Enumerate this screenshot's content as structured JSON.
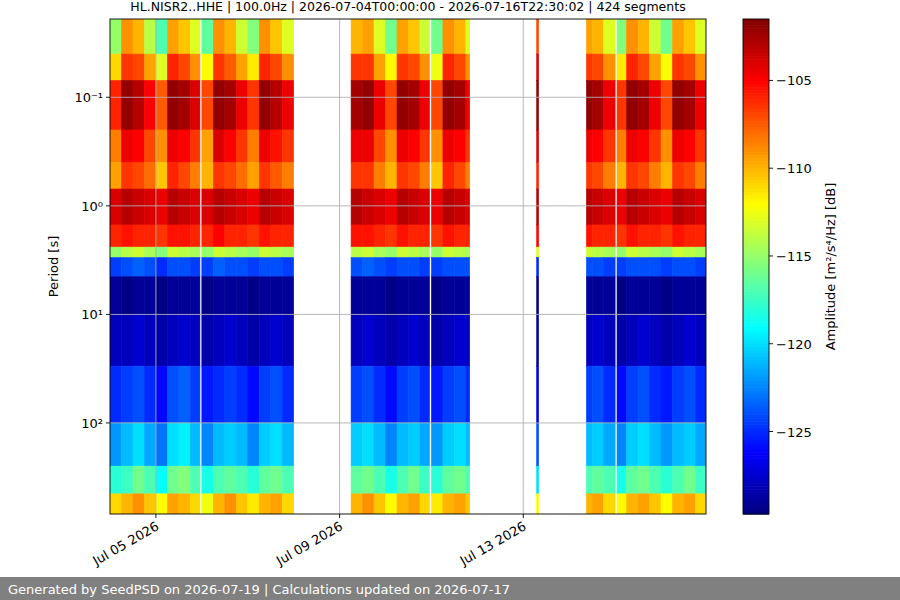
{
  "chart_data": {
    "type": "heatmap",
    "title": "HL.NISR2..HHE | 100.0Hz | 2026-07-04T00:00:00 - 2026-07-16T22:30:02 | 424 segments",
    "footer": "Generated by SeedPSD on 2026-07-19 | Calculations updated on 2026-07-17",
    "y_label": "Period [s]",
    "log": "y",
    "grid": true,
    "xlim": [
      "2026-07-04T00:00",
      "2026-07-16T23:30"
    ],
    "xticks": [
      {
        "value": "2026-07-05T00:00",
        "label": "Jul 05 2026"
      },
      {
        "value": "2026-07-09T00:00",
        "label": "Jul 09 2026"
      },
      {
        "value": "2026-07-13T00:00",
        "label": "Jul 13 2026"
      }
    ],
    "ylim": [
      690,
      0.019
    ],
    "yticks": [
      {
        "value": 0.1,
        "label": "10⁻¹"
      },
      {
        "value": 1,
        "label": "10⁰"
      },
      {
        "value": 10,
        "label": "10¹"
      },
      {
        "value": 100,
        "label": "10²"
      }
    ],
    "colorbar": {
      "label": "Amplitude [m²/s⁴/Hz] [dB]",
      "range": [
        -129.7,
        -101.5
      ],
      "ticks": [
        {
          "value": -125,
          "label": "−125"
        },
        {
          "value": -120,
          "label": "−120"
        },
        {
          "value": -115,
          "label": "−115"
        },
        {
          "value": -110,
          "label": "−110"
        },
        {
          "value": -105,
          "label": "−105"
        }
      ]
    },
    "x_edges": [
      "2026-07-04T00:00",
      "2026-07-04T06:00",
      "2026-07-04T12:00",
      "2026-07-04T18:00",
      "2026-07-05T00:00",
      "2026-07-05T06:00",
      "2026-07-05T12:00",
      "2026-07-05T18:00",
      "2026-07-05T23:00",
      "2026-07-06T00:00",
      "2026-07-06T06:00",
      "2026-07-06T12:00",
      "2026-07-06T18:00",
      "2026-07-07T00:00",
      "2026-07-07T06:00",
      "2026-07-07T12:00",
      "2026-07-07T18:00",
      "2026-07-08T00:00",
      "2026-07-09T06:00",
      "2026-07-09T12:00",
      "2026-07-09T18:00",
      "2026-07-10T00:00",
      "2026-07-10T06:00",
      "2026-07-10T12:00",
      "2026-07-10T18:00",
      "2026-07-10T23:00",
      "2026-07-11T00:00",
      "2026-07-11T06:00",
      "2026-07-11T12:00",
      "2026-07-11T18:00",
      "2026-07-11T20:00",
      "2026-07-13T07:00",
      "2026-07-13T08:00",
      "2026-07-14T09:00",
      "2026-07-14T12:00",
      "2026-07-14T18:00",
      "2026-07-15T00:00",
      "2026-07-15T01:00",
      "2026-07-15T06:00",
      "2026-07-15T12:00",
      "2026-07-15T18:00",
      "2026-07-16T00:00",
      "2026-07-16T06:00",
      "2026-07-16T12:00",
      "2026-07-16T18:00",
      "2026-07-16T23:30"
    ],
    "y_edges": [
      0.019,
      0.04,
      0.07,
      0.2,
      0.4,
      0.7,
      1.5,
      2.4,
      3.0,
      4.5,
      10,
      30,
      100,
      250,
      450,
      690
    ],
    "values": [
      [
        -115,
        -111,
        -106,
        -108.5,
        -109.5,
        -104,
        -106,
        -115,
        -124.5,
        -129,
        -128,
        -125,
        -122,
        -118,
        -111
      ],
      [
        -109,
        -106.5,
        -102,
        -104.5,
        -106.5,
        -103,
        -105.5,
        -114,
        -124,
        -129.5,
        -128,
        -124.5,
        -121,
        -117.5,
        -110
      ],
      [
        -110,
        -107,
        -103,
        -105,
        -107,
        -103.5,
        -106,
        -113.5,
        -123.5,
        -129,
        -127.5,
        -124,
        -120,
        -116,
        -109
      ],
      [
        -114,
        -109.5,
        -105,
        -107,
        -108,
        -104,
        -106,
        -114.5,
        -124,
        -129,
        -128,
        -125,
        -121.5,
        -117,
        -110.5
      ],
      [
        -117,
        -113,
        -107.5,
        -109,
        -110.5,
        -104.5,
        -106.5,
        -115.5,
        -125,
        -129.5,
        -128.5,
        -126,
        -123,
        -119,
        -112
      ],
      [
        -109.5,
        -106,
        -102,
        -104.5,
        -106,
        -103,
        -105.5,
        -113.5,
        -124,
        -129,
        -128,
        -124,
        -120,
        -116,
        -109.5
      ],
      [
        -110.5,
        -107,
        -102.5,
        -105,
        -107,
        -103.5,
        -105.5,
        -114,
        -124,
        -129,
        -127.5,
        -123.5,
        -119.5,
        -115.5,
        -110
      ],
      [
        -113,
        -109,
        -104,
        -106.5,
        -108.5,
        -104,
        -106,
        -114.5,
        -124.5,
        -129,
        -128,
        -124.5,
        -121,
        -117,
        -111
      ],
      null,
      [
        -116.5,
        -112,
        -107,
        -109.5,
        -110,
        -104,
        -106,
        -115,
        -124.5,
        -129.5,
        -128.5,
        -125.5,
        -122.5,
        -118.5,
        -112.5
      ],
      [
        -109,
        -106.5,
        -102,
        -104,
        -106.5,
        -103,
        -105,
        -113.5,
        -123.5,
        -129,
        -128,
        -125,
        -121,
        -117,
        -110
      ],
      [
        -110,
        -107.5,
        -102.5,
        -105,
        -107,
        -103.5,
        -106,
        -114,
        -124,
        -129,
        -127.5,
        -124.5,
        -120.5,
        -116.5,
        -109
      ],
      [
        -113.5,
        -109.5,
        -104.5,
        -106.5,
        -108,
        -104,
        -106,
        -114.5,
        -124,
        -129,
        -128,
        -125,
        -121,
        -117,
        -110.5
      ],
      [
        -115.5,
        -111.5,
        -106.5,
        -108.5,
        -109.5,
        -104.5,
        -106.5,
        -115,
        -124.5,
        -129.5,
        -128.5,
        -126,
        -122.5,
        -118,
        -111.5
      ],
      [
        -109,
        -106,
        -102,
        -104.5,
        -106.5,
        -103,
        -105.5,
        -113.5,
        -124,
        -129,
        -128,
        -124.5,
        -120.5,
        -116.5,
        -110
      ],
      [
        -110.5,
        -107,
        -103,
        -105.5,
        -107.5,
        -103.5,
        -106,
        -114,
        -124,
        -129,
        -127.5,
        -124,
        -120,
        -116,
        -109.5
      ],
      [
        -113,
        -109,
        -104.5,
        -106.5,
        -108.5,
        -104,
        -106,
        -114.5,
        -124.5,
        -129,
        -128,
        -125,
        -121,
        -117,
        -111
      ],
      null,
      [
        -110,
        -106.5,
        -102.5,
        -104.5,
        -106.5,
        -103,
        -105.5,
        -114,
        -124,
        -129,
        -128,
        -124.5,
        -120.5,
        -116.5,
        -110
      ],
      [
        -109.5,
        -106.5,
        -102,
        -104.5,
        -106.5,
        -103.5,
        -105.5,
        -113.5,
        -123.5,
        -129,
        -127.5,
        -124,
        -120,
        -116,
        -109
      ],
      [
        -113,
        -109.5,
        -104.5,
        -107,
        -108.5,
        -104,
        -106,
        -114.5,
        -124,
        -129,
        -128,
        -125,
        -121,
        -117,
        -110.5
      ],
      [
        -116,
        -112,
        -107,
        -109,
        -110,
        -104.5,
        -106.5,
        -115,
        -124.5,
        -129.5,
        -128.5,
        -126,
        -122.5,
        -118.5,
        -112
      ],
      [
        -109.5,
        -106.5,
        -102,
        -104.5,
        -106.5,
        -103,
        -105.5,
        -113.5,
        -124,
        -129,
        -128,
        -124.5,
        -121,
        -117,
        -110
      ],
      [
        -110.5,
        -107,
        -102.5,
        -105,
        -107,
        -103.5,
        -106,
        -114,
        -124,
        -129,
        -127.5,
        -124,
        -120.5,
        -116,
        -109.5
      ],
      [
        -113.5,
        -109,
        -104.5,
        -106.5,
        -108.5,
        -104,
        -106,
        -114.5,
        -124.5,
        -129,
        -128,
        -125,
        -121.5,
        -117.5,
        -111
      ],
      null,
      [
        -116,
        -112.5,
        -107,
        -109,
        -110.5,
        -104.5,
        -106.5,
        -115,
        -124.5,
        -129.5,
        -128.5,
        -125.5,
        -122,
        -118,
        -111.5
      ],
      [
        -109,
        -106,
        -102,
        -104.5,
        -106,
        -103,
        -105.5,
        -113.5,
        -124,
        -129,
        -128,
        -124.5,
        -120.5,
        -116.5,
        -110
      ],
      [
        -110,
        -107,
        -102.5,
        -105,
        -107,
        -103.5,
        -106,
        -114,
        -124,
        -129,
        -127.5,
        -124,
        -120,
        -116,
        -109.5
      ],
      [
        -113,
        -109,
        -104.5,
        -106.5,
        -108.5,
        -104,
        -106,
        -114.5,
        -124,
        -129,
        -128,
        -125,
        -121,
        -117,
        -110.5
      ],
      null,
      [
        -107,
        -104,
        -102,
        -104,
        -106,
        -103,
        -105,
        -113,
        -125,
        -129.5,
        -129,
        -127,
        -124,
        -120,
        -112
      ],
      null,
      [
        -109.5,
        -106.5,
        -102,
        -104.5,
        -106.5,
        -103,
        -105.5,
        -113.5,
        -124,
        -129,
        -128,
        -124.5,
        -121,
        -117,
        -110
      ],
      [
        -110,
        -107,
        -102.5,
        -105,
        -107,
        -103.5,
        -106,
        -114,
        -124,
        -129,
        -127.5,
        -124,
        -120.5,
        -116.5,
        -109.5
      ],
      [
        -113,
        -109,
        -104.5,
        -106.5,
        -108.5,
        -104,
        -106,
        -114.5,
        -124.5,
        -129,
        -128,
        -125,
        -121.5,
        -117,
        -111
      ],
      null,
      [
        -115.5,
        -111.5,
        -106.5,
        -108.5,
        -110,
        -104.5,
        -106.5,
        -115,
        -124.5,
        -129.5,
        -128.5,
        -126,
        -122.5,
        -118.5,
        -112
      ],
      [
        -109,
        -106,
        -102,
        -104.5,
        -106.5,
        -103,
        -105.5,
        -113.5,
        -124,
        -129,
        -128,
        -124.5,
        -120.5,
        -116.5,
        -110
      ],
      [
        -110,
        -107,
        -102.5,
        -105,
        -107,
        -103.5,
        -106,
        -114,
        -124,
        -129,
        -127.5,
        -124,
        -120,
        -116,
        -109.5
      ],
      [
        -113.5,
        -109.5,
        -104.5,
        -106.5,
        -108.5,
        -104,
        -106,
        -114.5,
        -124,
        -129,
        -128,
        -125,
        -121,
        -117,
        -110.5
      ],
      [
        -116,
        -112,
        -107,
        -109,
        -110,
        -104.5,
        -106.5,
        -115,
        -124.5,
        -129.5,
        -128.5,
        -125.5,
        -122,
        -118,
        -112
      ],
      [
        -109.5,
        -106.5,
        -102,
        -104.5,
        -106.5,
        -103,
        -105.5,
        -113.5,
        -124,
        -129,
        -128,
        -124.5,
        -121,
        -117,
        -110
      ],
      [
        -110.5,
        -107,
        -102.5,
        -105,
        -107,
        -103.5,
        -106,
        -114,
        -124,
        -129,
        -127.5,
        -124,
        -120.5,
        -116,
        -109.5
      ],
      [
        -113,
        -109,
        -104.5,
        -106.5,
        -108.5,
        -104,
        -106,
        -114.5,
        -124.5,
        -129,
        -128,
        -125,
        -121.5,
        -117.5,
        -111
      ]
    ]
  }
}
